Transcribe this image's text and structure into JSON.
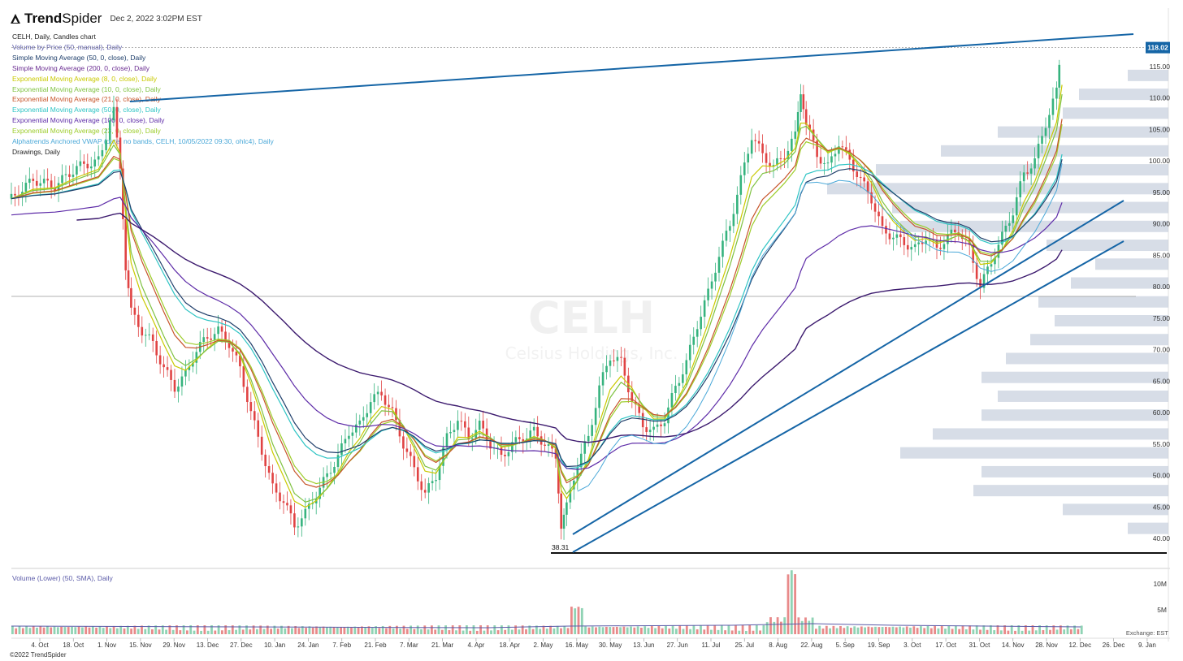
{
  "header": {
    "brand_bold": "Trend",
    "brand_thin": "Spider",
    "date": "Dec 2, 2022 3:02PM EST",
    "copyright": "©2022 TrendSpider"
  },
  "legend": [
    {
      "text": "CELH, Daily, Candles chart",
      "color": "#222222"
    },
    {
      "text": "Volume by Price (50, manual), Daily",
      "color": "#5b5ba8"
    },
    {
      "text": "Simple Moving Average (50, 0, close), Daily",
      "color": "#1f3f6b"
    },
    {
      "text": "Simple Moving Average (200, 0, close), Daily",
      "color": "#6a2c91"
    },
    {
      "text": "Exponential Moving Average (8, 0, close), Daily",
      "color": "#c9c900"
    },
    {
      "text": "Exponential Moving Average (10, 0, close), Daily",
      "color": "#7fc241"
    },
    {
      "text": "Exponential Moving Average (21, 0, close), Daily",
      "color": "#c7542a"
    },
    {
      "text": "Exponential Moving Average (50, 0, close), Daily",
      "color": "#2ec4c4"
    },
    {
      "text": "Exponential Moving Average (100, 0, close), Daily",
      "color": "#5e2ca8"
    },
    {
      "text": "Exponential Moving Average (23, 0, close), Daily",
      "color": "#9ccc29"
    },
    {
      "text": "Alphatrends Anchored VWAP (date, no bands, CELH, 10/05/2022 09:30, ohlc4), Daily",
      "color": "#4aa8d8"
    },
    {
      "text": "Drawings, Daily",
      "color": "#222222"
    }
  ],
  "volume_label": "Volume (Lower) (50, SMA), Daily",
  "colors": {
    "up": "#36b37e",
    "down": "#e04343",
    "trendline": "#1565a6",
    "vbp": "#c6cedd"
  },
  "chart_data": {
    "type": "candlestick",
    "symbol": "CELH",
    "watermark": "CELH",
    "watermark_sub": "Celsius Holdings, Inc.",
    "last_price": "118.02",
    "low_marker": "38.31",
    "ylim": [
      38,
      120
    ],
    "y_ticks": [
      "115.00",
      "110.00",
      "105.00",
      "100.00",
      "95.00",
      "90.00",
      "85.00",
      "80.00",
      "75.00",
      "70.00",
      "65.00",
      "60.00",
      "55.00",
      "50.00",
      "45.00",
      "40.00"
    ],
    "x_ticks": [
      "4. Oct",
      "18. Oct",
      "1. Nov",
      "15. Nov",
      "29. Nov",
      "13. Dec",
      "27. Dec",
      "10. Jan",
      "24. Jan",
      "7. Feb",
      "21. Feb",
      "7. Mar",
      "21. Mar",
      "4. Apr",
      "18. Apr",
      "2. May",
      "16. May",
      "30. May",
      "13. Jun",
      "27. Jun",
      "11. Jul",
      "25. Jul",
      "8. Aug",
      "22. Aug",
      "5. Sep",
      "19. Sep",
      "3. Oct",
      "17. Oct",
      "31. Oct",
      "14. Nov",
      "28. Nov",
      "12. Dec",
      "26. Dec",
      "9. Jan"
    ],
    "volume_ticks": [
      "10M",
      "5M"
    ],
    "exchange_label": "Exchange: EST",
    "price_path": [
      [
        0,
        94
      ],
      [
        2,
        97
      ],
      [
        4,
        96
      ],
      [
        6,
        99
      ],
      [
        8,
        100
      ],
      [
        9.4,
        108
      ],
      [
        10,
        99
      ],
      [
        10.5,
        82
      ],
      [
        11,
        76
      ],
      [
        12,
        73
      ],
      [
        13,
        71
      ],
      [
        14,
        67
      ],
      [
        15,
        64
      ],
      [
        16,
        66
      ],
      [
        17,
        70
      ],
      [
        18,
        72
      ],
      [
        19,
        73
      ],
      [
        20,
        71
      ],
      [
        21,
        67
      ],
      [
        22,
        60
      ],
      [
        23,
        54
      ],
      [
        24,
        48
      ],
      [
        25,
        46
      ],
      [
        26,
        42
      ],
      [
        27,
        44
      ],
      [
        28,
        47
      ],
      [
        29,
        50
      ],
      [
        30,
        53
      ],
      [
        31,
        57
      ],
      [
        32,
        58
      ],
      [
        33,
        62
      ],
      [
        34,
        63
      ],
      [
        35,
        60
      ],
      [
        36,
        55
      ],
      [
        37,
        51
      ],
      [
        38,
        47
      ],
      [
        39,
        50
      ],
      [
        40,
        56
      ],
      [
        41,
        59
      ],
      [
        42,
        56
      ],
      [
        43,
        58
      ],
      [
        44,
        55
      ],
      [
        45,
        53
      ],
      [
        46,
        55
      ],
      [
        47,
        56
      ],
      [
        48,
        57
      ],
      [
        49,
        55
      ],
      [
        50,
        53
      ],
      [
        50.5,
        41
      ],
      [
        51,
        45
      ],
      [
        52,
        52
      ],
      [
        53,
        56
      ],
      [
        54,
        64
      ],
      [
        55,
        69
      ],
      [
        56,
        68
      ],
      [
        57,
        62
      ],
      [
        58,
        58
      ],
      [
        59,
        57
      ],
      [
        60,
        59
      ],
      [
        61,
        64
      ],
      [
        62,
        68
      ],
      [
        63,
        74
      ],
      [
        64,
        79
      ],
      [
        65,
        85
      ],
      [
        66,
        90
      ],
      [
        67,
        97
      ],
      [
        68,
        104
      ],
      [
        69,
        101
      ],
      [
        70,
        99
      ],
      [
        71,
        101
      ],
      [
        72,
        104
      ],
      [
        72.5,
        110
      ],
      [
        73,
        106
      ],
      [
        74,
        101
      ],
      [
        75,
        99
      ],
      [
        76,
        103
      ],
      [
        77,
        100
      ],
      [
        78,
        97
      ],
      [
        79,
        94
      ],
      [
        80,
        89
      ],
      [
        81,
        88
      ],
      [
        82,
        87
      ],
      [
        83,
        86
      ],
      [
        84,
        88
      ],
      [
        85,
        86
      ],
      [
        86,
        88
      ],
      [
        87,
        89
      ],
      [
        88,
        86
      ],
      [
        89,
        80
      ],
      [
        90,
        84
      ],
      [
        91,
        88
      ],
      [
        92,
        92
      ],
      [
        93,
        98
      ],
      [
        94,
        100
      ],
      [
        95,
        106
      ],
      [
        96,
        111
      ],
      [
        96.5,
        118
      ]
    ]
  }
}
